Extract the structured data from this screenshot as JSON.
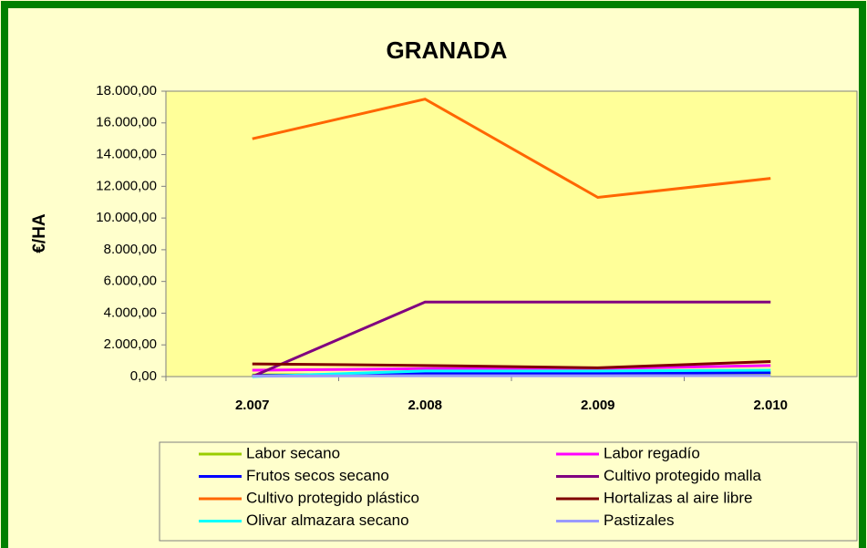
{
  "chart_data": {
    "type": "line",
    "title": "GRANADA",
    "y_label": "€/HA",
    "categories": [
      "2.007",
      "2.008",
      "2.009",
      "2.010"
    ],
    "series": [
      {
        "name": "Labor secano",
        "color": "#99cc00",
        "values": [
          100,
          150,
          150,
          150
        ]
      },
      {
        "name": "Labor regadío",
        "color": "#ff00ff",
        "values": [
          400,
          500,
          500,
          700
        ]
      },
      {
        "name": "Frutos secos secano",
        "color": "#0000ff",
        "values": [
          50,
          200,
          200,
          250
        ]
      },
      {
        "name": "Cultivo protegido malla",
        "color": "#800080",
        "values": [
          0,
          4700,
          4700,
          4700
        ]
      },
      {
        "name": "Cultivo protegido plástico",
        "color": "#ff6600",
        "values": [
          15000,
          17500,
          11300,
          12500
        ]
      },
      {
        "name": "Hortalizas al aire libre",
        "color": "#800000",
        "values": [
          800,
          700,
          550,
          950
        ]
      },
      {
        "name": "Olivar almazara secano",
        "color": "#00ffff",
        "values": [
          0,
          350,
          350,
          400
        ]
      },
      {
        "name": "Pastizales",
        "color": "#9999ff",
        "values": [
          30,
          50,
          50,
          60
        ]
      }
    ],
    "ylim": [
      0,
      18000
    ],
    "yticks": [
      {
        "value": 0,
        "label": "0,00"
      },
      {
        "value": 2000,
        "label": "2.000,00"
      },
      {
        "value": 4000,
        "label": "4.000,00"
      },
      {
        "value": 6000,
        "label": "6.000,00"
      },
      {
        "value": 8000,
        "label": "8.000,00"
      },
      {
        "value": 10000,
        "label": "10.000,00"
      },
      {
        "value": 12000,
        "label": "12.000,00"
      },
      {
        "value": 14000,
        "label": "14.000,00"
      },
      {
        "value": 16000,
        "label": "16.000,00"
      },
      {
        "value": 18000,
        "label": "18.000,00"
      }
    ],
    "grid": false,
    "legend": "bottom"
  }
}
